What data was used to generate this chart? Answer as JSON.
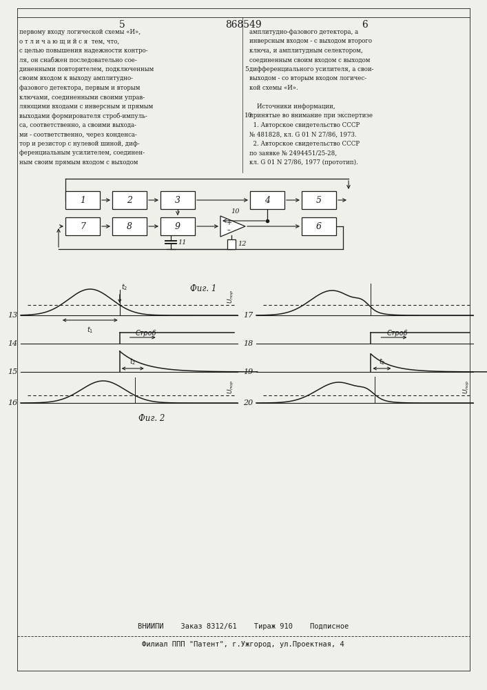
{
  "page_number_left": "5",
  "page_number_center": "868549",
  "page_number_right": "6",
  "text_left": [
    "первому входу логической схемы «И»,",
    "о т л и ч а ю щ и й с я  тем, что,",
    "с целью повышения надежности контро-",
    "ля, он снабжен последовательно сое-",
    "диненными повторителем, подключенным",
    "своим входом к выходу амплитудно-",
    "фазового детектора, первым и вторым",
    "ключами, соединенными своими управ-",
    "ляющими входами с инверсным и прямым",
    "выходами формирователя строб-импуль-",
    "са, соответственно, а своими выхода-",
    "ми - соответственно, через конденса-",
    "тор и резистор с нулевой шиной, диф-",
    "ференциальным усилителем, соединен-",
    "ным своим прямым входом с выходом"
  ],
  "text_right": [
    "амплитудно-фазового детектора, а",
    "инверсным входом - с выходом второго",
    "ключа, и амплитудным селектором,",
    "соединенным своим входом с выходом",
    "дифференциального усилителя, а свои-",
    "выходом - со вторым входом логичес-",
    "кой схемы «И».",
    "",
    "    Источники информации,",
    "принятые во внимание при экспертизе",
    "  1. Авторское свидетельство СССР",
    "№ 481828, кл. G 01 N 27/86, 1973.",
    "  2. Авторское свидетельство СССР",
    "по заявке № 2494451/25-28,",
    "кл. G 01 N 27/86, 1977 (прототип)."
  ],
  "fig1_label": "Фиг. 1",
  "fig2_label": "Фиг. 2",
  "footer_line1": "ВНИИПИ    Заказ 8312/61    Тираж 910    Подписное",
  "footer_line2": "Филиал ППП \"Патент\", г.Ужгород, ул.Проектная, 4",
  "bg_color": "#f0f0eb",
  "line_color": "#1a1a1a",
  "text_color": "#1a1a1a"
}
